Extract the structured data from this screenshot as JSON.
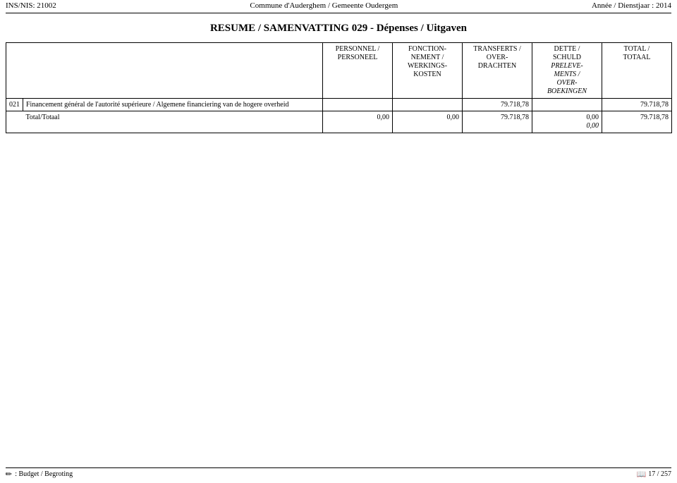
{
  "header": {
    "left": "INS/NIS: 21002",
    "center": "Commune d'Auderghem / Gemeente Oudergem",
    "right": "Année / Dienstjaar : 2014"
  },
  "title": "RESUME / SAMENVATTING  029  - Dépenses / Uitgaven",
  "columns": {
    "personnel": "PERSONNEL /\nPERSONEEL",
    "fonction": "FONCTION-\nNEMENT /\nWERKINGS-\nKOSTEN",
    "transferts": "TRANSFERTS /\nOVER-\nDRACHTEN",
    "dette_top": "DETTE /\nSCHULD",
    "dette_italic": "PRELEVE-\nMENTS /\nOVER-\nBOEKINGEN",
    "total": "TOTAL  /\nTOTAAL"
  },
  "row": {
    "code": "021",
    "label": "Financement général de l'autorité supérieure / Algemene financiering van de hogere overheid",
    "personnel": "",
    "fonction": "",
    "transferts": "79.718,78",
    "dette": "",
    "total": "79.718,78"
  },
  "totals": {
    "label": "Total/Totaal",
    "personnel": "0,00",
    "fonction": "0,00",
    "transferts": "79.718,78",
    "dette_top": "0,00",
    "dette_bottom": "0,00",
    "total": "79.718,78"
  },
  "footer": {
    "left": ": Budget / Begroting",
    "right": "17 / 257"
  }
}
